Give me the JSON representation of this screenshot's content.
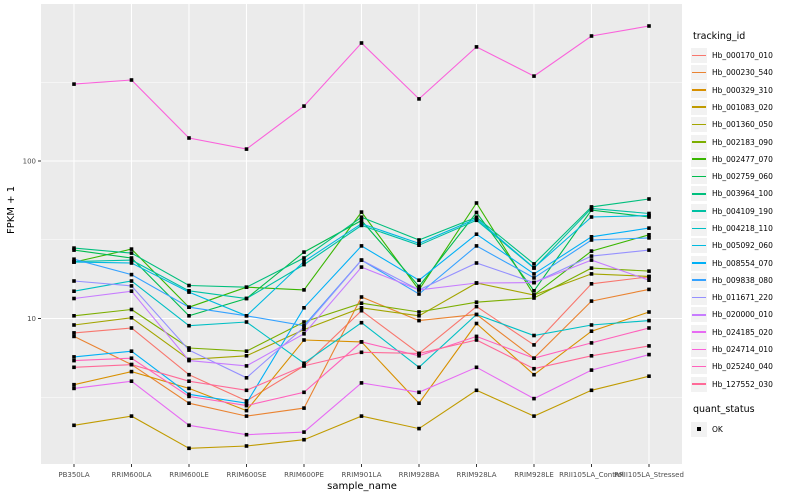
{
  "chart_data": {
    "type": "line",
    "title": "",
    "xlabel": "sample_name",
    "ylabel": "FPKM + 1",
    "yscale": "log10",
    "ylim": [
      1.19,
      995
    ],
    "grid": true,
    "legend_position": "right",
    "y_ticks": [
      {
        "value": 100,
        "label": "100"
      },
      {
        "value": 10,
        "label": "10"
      }
    ],
    "y_minor_gridline_values": [
      316.23,
      31.62,
      3.162
    ],
    "categories": [
      "PB350LA",
      "RRIM600LA",
      "RRIM600LE",
      "RRIM600SE",
      "RRIM600PE",
      "RRIM901LA",
      "RRIM928BA",
      "RRIM928LA",
      "RRIM928LE",
      "RRII105LA_Control",
      "RRII105LA_Stressed"
    ],
    "point_marker": "filled-square",
    "point_color": "#000000",
    "series": [
      {
        "name": "Hb_000170_010",
        "color": "#F8766D",
        "values": [
          8.1,
          8.7,
          4.4,
          3.0,
          5.0,
          11.2,
          6.0,
          11.9,
          6.8,
          16.6,
          18.4
        ]
      },
      {
        "name": "Hb_000230_540",
        "color": "#EA8331",
        "values": [
          7.7,
          5.1,
          2.9,
          2.4,
          2.7,
          13.7,
          9.7,
          10.6,
          5.6,
          12.9,
          15.3
        ]
      },
      {
        "name": "Hb_000329_310",
        "color": "#D89000",
        "values": [
          3.8,
          4.6,
          3.6,
          2.6,
          7.3,
          7.1,
          2.9,
          9.3,
          4.4,
          8.3,
          11.0
        ]
      },
      {
        "name": "Hb_001083_020",
        "color": "#C09B00",
        "values": [
          2.1,
          2.4,
          1.5,
          1.55,
          1.7,
          2.4,
          2.0,
          3.5,
          2.4,
          3.5,
          4.3
        ]
      },
      {
        "name": "Hb_001360_050",
        "color": "#A3A500",
        "values": [
          9.1,
          10.1,
          5.5,
          5.8,
          8.5,
          11.7,
          10.4,
          16.8,
          14.1,
          19.2,
          18.5
        ]
      },
      {
        "name": "Hb_002183_090",
        "color": "#7CAE00",
        "values": [
          10.4,
          11.4,
          6.5,
          6.2,
          9.5,
          12.5,
          11.0,
          12.7,
          13.5,
          20.9,
          20.0
        ]
      },
      {
        "name": "Hb_002477_070",
        "color": "#39B600",
        "values": [
          22.8,
          27.6,
          11.8,
          15.8,
          15.2,
          47.4,
          15.2,
          54.1,
          14.1,
          26.8,
          34.0
        ]
      },
      {
        "name": "Hb_002759_060",
        "color": "#00BB4E",
        "values": [
          27.2,
          24.2,
          10.4,
          13.4,
          26.4,
          41.9,
          16.0,
          47.1,
          15.0,
          48.8,
          44.1
        ]
      },
      {
        "name": "Hb_003964_100",
        "color": "#00BF7D",
        "values": [
          28.0,
          26.0,
          16.2,
          15.8,
          24.2,
          44.0,
          31.5,
          44.0,
          22.2,
          51.1,
          57.4
        ]
      },
      {
        "name": "Hb_004109_190",
        "color": "#00C1A3",
        "values": [
          23.0,
          23.5,
          15.0,
          13.4,
          22.0,
          39.0,
          29.2,
          42.0,
          20.9,
          50.0,
          46.4
        ]
      },
      {
        "name": "Hb_004218_110",
        "color": "#00BFC4",
        "values": [
          14.9,
          17.3,
          9.0,
          9.5,
          5.2,
          9.4,
          4.9,
          10.6,
          7.8,
          9.1,
          9.7
        ]
      },
      {
        "name": "Hb_005092_060",
        "color": "#00BAE0",
        "values": [
          22.8,
          22.5,
          14.7,
          10.4,
          23.0,
          40.0,
          30.0,
          43.0,
          21.0,
          44.1,
          45.0
        ]
      },
      {
        "name": "Hb_008554_070",
        "color": "#00B0F6",
        "values": [
          5.7,
          6.2,
          3.3,
          2.9,
          11.7,
          28.9,
          17.5,
          34.3,
          19.2,
          33.0,
          37.5
        ]
      },
      {
        "name": "Hb_009838_080",
        "color": "#35A2FF",
        "values": [
          23.8,
          19.0,
          11.8,
          10.4,
          9.0,
          23.5,
          14.3,
          28.9,
          18.1,
          31.5,
          32.5
        ]
      },
      {
        "name": "Hb_011671_220",
        "color": "#9590FF",
        "values": [
          17.3,
          16.1,
          6.3,
          4.2,
          8.8,
          23.5,
          15.2,
          22.5,
          16.9,
          24.9,
          27.2
        ]
      },
      {
        "name": "Hb_020000_010",
        "color": "#C77CFF",
        "values": [
          13.4,
          14.9,
          5.4,
          5.0,
          8.0,
          21.2,
          15.2,
          16.8,
          16.9,
          23.5,
          17.5
        ]
      },
      {
        "name": "Hb_024185_020",
        "color": "#E76BF3",
        "values": [
          3.6,
          4.0,
          2.1,
          1.83,
          1.9,
          3.9,
          3.4,
          4.9,
          3.1,
          4.7,
          5.9
        ]
      },
      {
        "name": "Hb_024714_010",
        "color": "#FA62DB",
        "values": [
          308,
          327,
          140,
          119,
          223,
          561,
          248,
          530,
          346,
          622,
          720
        ]
      },
      {
        "name": "Hb_025240_040",
        "color": "#FF62BC",
        "values": [
          5.4,
          5.6,
          3.2,
          2.8,
          3.4,
          7.1,
          5.8,
          7.7,
          5.6,
          7.0,
          8.7
        ]
      },
      {
        "name": "Hb_127552_030",
        "color": "#FF6A98",
        "values": [
          4.9,
          5.1,
          4.0,
          3.5,
          5.0,
          6.1,
          6.0,
          7.3,
          4.8,
          5.8,
          6.7
        ]
      }
    ],
    "legend": {
      "tracking_title": "tracking_id",
      "quant_title": "quant_status",
      "quant_entries": [
        "OK"
      ]
    }
  },
  "theme": {
    "panel_bg": "#EBEBEB",
    "grid_color": "#FFFFFF",
    "tick_color": "#333333",
    "tick_text_color": "#4D4D4D",
    "axis_title_color": "#000000",
    "legend_key_bg": "#F2F2F2",
    "point_color": "#000000"
  }
}
